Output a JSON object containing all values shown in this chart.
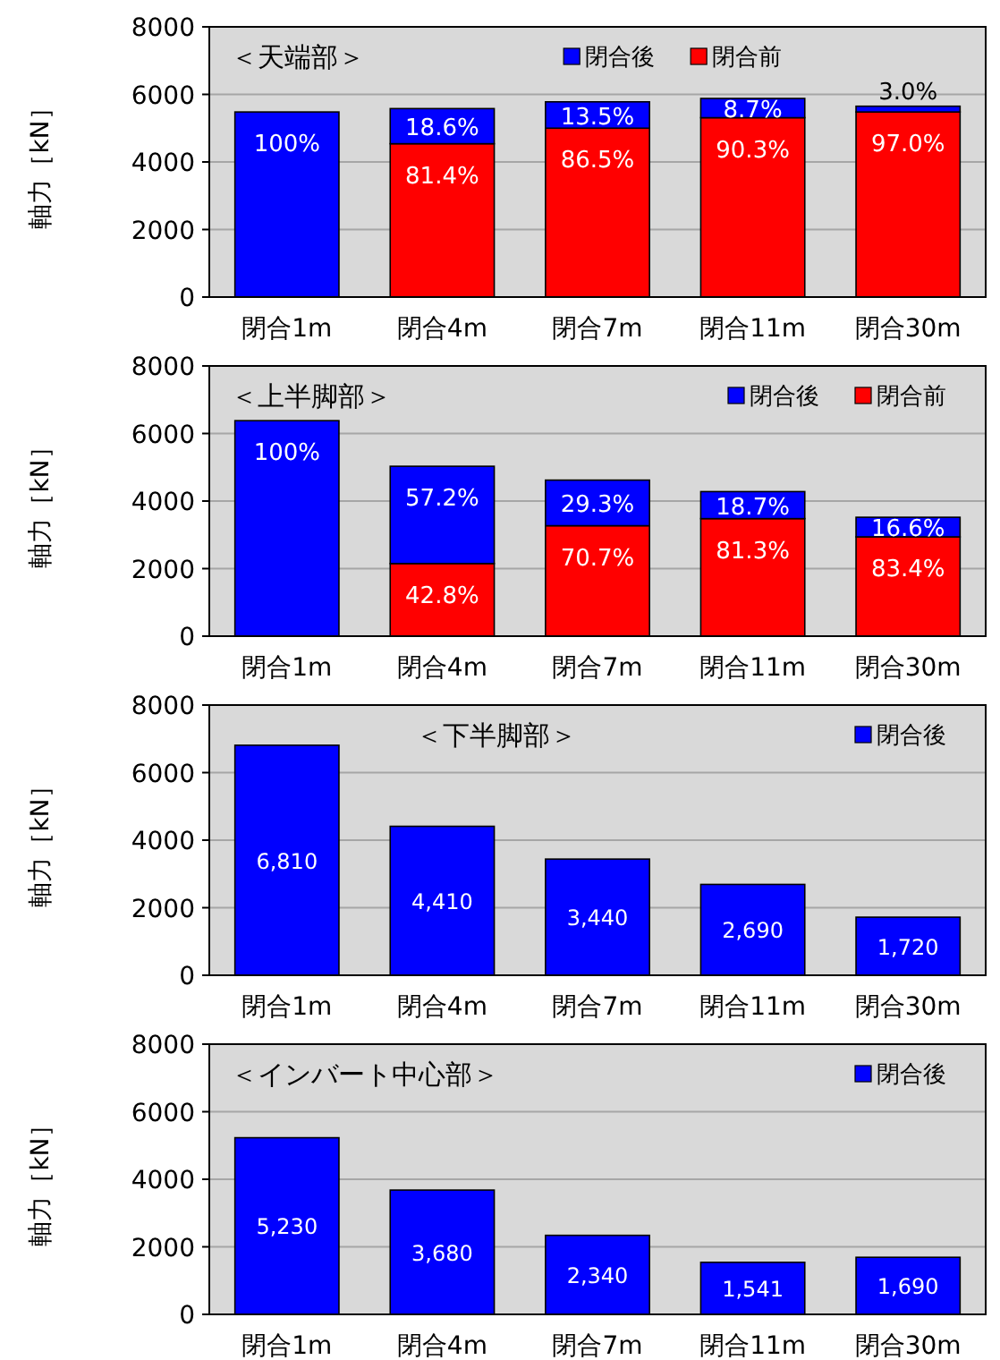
{
  "chart_data": [
    {
      "type": "bar",
      "title": "＜天端部＞",
      "ylabel": "軸力［kN］",
      "categories": [
        "閉合1m",
        "閉合4m",
        "閉合7m",
        "閉合11m",
        "閉合30m"
      ],
      "stacked": true,
      "ylim": [
        0,
        8000
      ],
      "yticks": [
        0,
        2000,
        4000,
        6000,
        8000
      ],
      "grid": "y",
      "legend": "top",
      "series": [
        {
          "name": "閉合前",
          "color": "#ff0000",
          "values": [
            null,
            4540,
            5000,
            5310,
            5480
          ]
        },
        {
          "name": "閉合後",
          "color": "#0000ff",
          "values": [
            5480,
            1040,
            780,
            570,
            170
          ]
        }
      ],
      "annotations": [
        {
          "text": "100%",
          "x": "閉合1m",
          "y": 5480
        },
        {
          "text": "81.4%",
          "x": "閉合4m",
          "y": 4540
        },
        {
          "text": "86.5%",
          "x": "閉合7m",
          "y": 5000
        },
        {
          "text": "90.3%",
          "x": "閉合11m",
          "y": 5310
        },
        {
          "text": "97.0%",
          "x": "閉合30m",
          "y": 5480
        },
        {
          "text": "18.6%",
          "x": "閉合4m",
          "y": 5580
        },
        {
          "text": "13.5%",
          "x": "閉合7m",
          "y": 5780
        },
        {
          "text": "8.7%",
          "x": "閉合11m",
          "y": 5880
        },
        {
          "text": "3.0%",
          "x": "閉合30m",
          "y": 5650
        }
      ]
    },
    {
      "type": "bar",
      "title": "＜上半脚部＞",
      "ylabel": "軸力［kN］",
      "categories": [
        "閉合1m",
        "閉合4m",
        "閉合7m",
        "閉合11m",
        "閉合30m"
      ],
      "stacked": true,
      "ylim": [
        0,
        8000
      ],
      "yticks": [
        0,
        2000,
        4000,
        6000,
        8000
      ],
      "grid": "y",
      "legend": "top right",
      "series": [
        {
          "name": "閉合前",
          "color": "#ff0000",
          "values": [
            null,
            2150,
            3270,
            3480,
            2940
          ]
        },
        {
          "name": "閉合後",
          "color": "#0000ff",
          "values": [
            6380,
            2880,
            1350,
            800,
            580
          ]
        }
      ],
      "annotations": [
        {
          "text": "100%",
          "x": "閉合1m",
          "y": 6380
        },
        {
          "text": "42.8%",
          "x": "閉合4m",
          "y": 2150
        },
        {
          "text": "70.7%",
          "x": "閉合7m",
          "y": 3270
        },
        {
          "text": "81.3%",
          "x": "閉合11m",
          "y": 3480
        },
        {
          "text": "83.4%",
          "x": "閉合30m",
          "y": 2940
        },
        {
          "text": "57.2%",
          "x": "閉合4m",
          "y": 5030
        },
        {
          "text": "29.3%",
          "x": "閉合7m",
          "y": 4620
        },
        {
          "text": "18.7%",
          "x": "閉合11m",
          "y": 4280
        },
        {
          "text": "16.6%",
          "x": "閉合30m",
          "y": 3520
        }
      ]
    },
    {
      "type": "bar",
      "title": "＜下半脚部＞",
      "ylabel": "軸力［kN］",
      "categories": [
        "閉合1m",
        "閉合4m",
        "閉合7m",
        "閉合11m",
        "閉合30m"
      ],
      "ylim": [
        0,
        8000
      ],
      "yticks": [
        0,
        2000,
        4000,
        6000,
        8000
      ],
      "grid": "y",
      "legend": "top right",
      "series": [
        {
          "name": "閉合後",
          "color": "#0000ff",
          "values": [
            6810,
            4410,
            3440,
            2690,
            1720
          ],
          "value_labels": [
            "6,810",
            "4,410",
            "3,440",
            "2,690",
            "1,720"
          ]
        }
      ]
    },
    {
      "type": "bar",
      "title": "＜インバート中心部＞",
      "ylabel": "軸力［kN］",
      "categories": [
        "閉合1m",
        "閉合4m",
        "閉合7m",
        "閉合11m",
        "閉合30m"
      ],
      "ylim": [
        0,
        8000
      ],
      "yticks": [
        0,
        2000,
        4000,
        6000,
        8000
      ],
      "grid": "y",
      "legend": "top right",
      "series": [
        {
          "name": "閉合後",
          "color": "#0000ff",
          "values": [
            5230,
            3680,
            2340,
            1541,
            1690
          ],
          "value_labels": [
            "5,230",
            "3,680",
            "2,340",
            "1,541",
            "1,690"
          ]
        }
      ]
    }
  ]
}
